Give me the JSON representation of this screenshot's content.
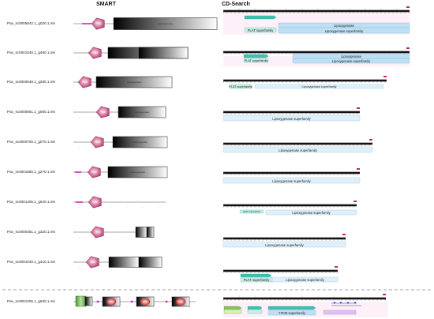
{
  "headers": {
    "smart": "SMART",
    "cdsearch": "CD-Search"
  },
  "domain_labels": {
    "plat": "PLAT",
    "lipox": "Lipoxygenase",
    "plat_superfamily": "PLAT superfamily",
    "lipox_superfamily": "Lipoxygenase superfamily",
    "top_lipox": "Lipoxygenase",
    "pkd": "PKD",
    "ttp": "TIP49 superfamily"
  },
  "genes": [
    {
      "id": "Pav_sc0005842.1_g020.1.mk"
    },
    {
      "id": "Pav_sc0001040.1_g480.1.mk"
    },
    {
      "id": "Pav_sc0000648.1_g280.1.mk"
    },
    {
      "id": "Pav_sc0000861.1_g060.1.mk"
    },
    {
      "id": "Pav_sc0000700.1_g070.1.mk"
    },
    {
      "id": "Pav_sc0001580.1_g270.1.mk"
    },
    {
      "id": "Pav_sc0001305.1_g640.1.mk"
    },
    {
      "id": "Pav_sc0000351.1_g320.1.mk"
    },
    {
      "id": "Pav_sc0001040.1_g410.1.mk"
    },
    {
      "id": "Pav_sc0001305.1_g630.1.mk"
    }
  ],
  "colors": {
    "plat_pink": "#c04a78",
    "cd_blue": "#bfe0f3",
    "cd_teal": "#3fc0b0",
    "ruler_magenta": "#c02080",
    "ruler_red": "#e03030",
    "dashed_line": "#888888",
    "green_domain": "#74b850"
  }
}
